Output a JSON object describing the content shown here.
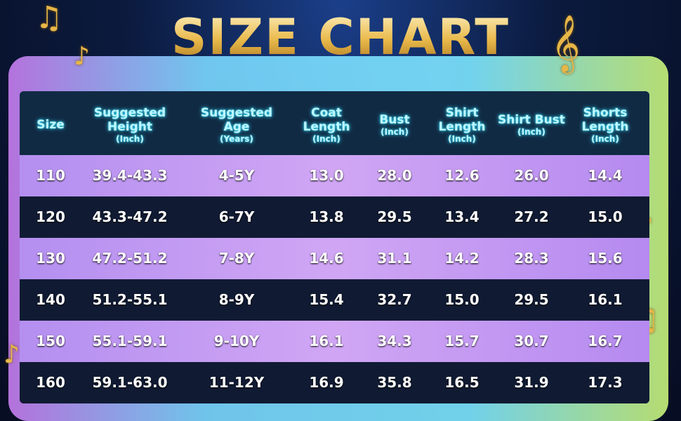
{
  "title": "SIZE CHART",
  "headers": [
    {
      "label": "Size",
      "unit": ""
    },
    {
      "label": "Suggested Height",
      "unit": "(Inch)"
    },
    {
      "label": "Suggested Age",
      "unit": "(Years)"
    },
    {
      "label": "Coat Length",
      "unit": "(Inch)"
    },
    {
      "label": "Bust",
      "unit": "(Inch)"
    },
    {
      "label": "Shirt Length",
      "unit": "(Inch)"
    },
    {
      "label": "Shirt Bust",
      "unit": "(Inch)"
    },
    {
      "label": "Shorts Length",
      "unit": "(Inch)"
    }
  ],
  "rows": [
    [
      "110",
      "39.4-43.3",
      "4-5Y",
      "13.0",
      "28.0",
      "12.6",
      "26.0",
      "14.4"
    ],
    [
      "120",
      "43.3-47.2",
      "6-7Y",
      "13.8",
      "29.5",
      "13.4",
      "27.2",
      "15.0"
    ],
    [
      "130",
      "47.2-51.2",
      "7-8Y",
      "14.6",
      "31.1",
      "14.2",
      "28.3",
      "15.6"
    ],
    [
      "140",
      "51.2-55.1",
      "8-9Y",
      "15.4",
      "32.7",
      "15.0",
      "29.5",
      "16.1"
    ],
    [
      "150",
      "55.1-59.1",
      "9-10Y",
      "16.1",
      "34.3",
      "15.7",
      "30.7",
      "16.7"
    ],
    [
      "160",
      "59.1-63.0",
      "11-12Y",
      "16.9",
      "35.8",
      "16.5",
      "31.9",
      "17.3"
    ]
  ],
  "colors": {
    "title": "#f3c863",
    "header_text": "#bff6ff",
    "row_light": "#c9a0f2",
    "row_dark": "#101b33"
  }
}
